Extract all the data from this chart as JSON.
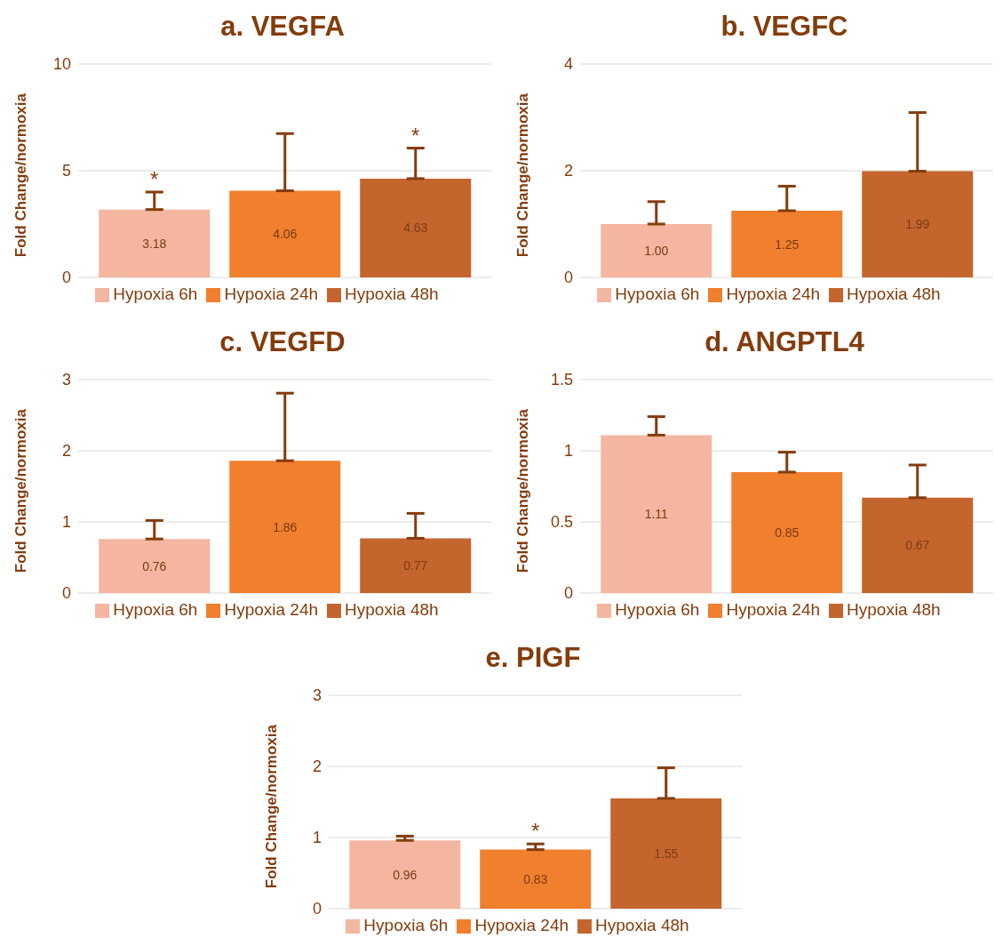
{
  "chart_data": [
    {
      "type": "bar",
      "title": "a. VEGFA",
      "ylabel": "Fold Change/normoxia",
      "categories": [
        null
      ],
      "ylim": [
        0,
        10
      ],
      "yticks": [
        0,
        5,
        10
      ],
      "grid": "y",
      "legend": "bottom",
      "data_labels": true,
      "series": [
        {
          "name": "Hypoxia 6h",
          "color": "#f4b6a0",
          "values": [
            3.18
          ],
          "errors": [
            [
              3.18,
              4.0
            ]
          ]
        },
        {
          "name": "Hypoxia 24h",
          "color": "#f07f2e",
          "values": [
            4.06
          ],
          "errors": [
            [
              4.06,
              6.74
            ]
          ]
        },
        {
          "name": "Hypoxia 48h",
          "color": "#c4652d",
          "values": [
            4.63
          ],
          "errors": [
            [
              4.63,
              6.06
            ]
          ]
        }
      ],
      "annotations": [
        {
          "text": "*",
          "y": 4.0
        },
        {
          "text": "*",
          "y": 6.06
        }
      ]
    },
    {
      "type": "bar",
      "title": "b. VEGFC",
      "ylabel": "Fold Change/normoxia",
      "categories": [
        null
      ],
      "ylim": [
        0,
        4
      ],
      "yticks": [
        0,
        2,
        4
      ],
      "grid": "y",
      "legend": "bottom",
      "data_labels": true,
      "series": [
        {
          "name": "Hypoxia 6h",
          "color": "#f4b6a0",
          "values": [
            1.0
          ],
          "value_labels": [
            "1.00"
          ],
          "errors": [
            [
              1.0,
              1.42
            ]
          ]
        },
        {
          "name": "Hypoxia 24h",
          "color": "#f07f2e",
          "values": [
            1.25
          ],
          "errors": [
            [
              1.25,
              1.71
            ]
          ]
        },
        {
          "name": "Hypoxia 48h",
          "color": "#c4652d",
          "values": [
            1.99
          ],
          "errors": [
            [
              1.99,
              3.09
            ]
          ]
        }
      ]
    },
    {
      "type": "bar",
      "title": "c. VEGFD",
      "ylabel": "Fold Change/normoxia",
      "categories": [
        null
      ],
      "ylim": [
        0,
        3
      ],
      "yticks": [
        0,
        1,
        2,
        3
      ],
      "grid": "y",
      "legend": "bottom",
      "data_labels": true,
      "series": [
        {
          "name": "Hypoxia 6h",
          "color": "#f4b6a0",
          "values": [
            0.76
          ],
          "errors": [
            [
              0.76,
              1.02
            ]
          ]
        },
        {
          "name": "Hypoxia 24h",
          "color": "#f07f2e",
          "values": [
            1.86
          ],
          "errors": [
            [
              1.86,
              2.81
            ]
          ]
        },
        {
          "name": "Hypoxia 48h",
          "color": "#c4652d",
          "values": [
            0.77
          ],
          "errors": [
            [
              0.77,
              1.12
            ]
          ]
        }
      ]
    },
    {
      "type": "bar",
      "title": "d. ANGPTL4",
      "ylabel": "Fold Change/normoxia",
      "categories": [
        null
      ],
      "ylim": [
        0,
        1.5
      ],
      "yticks": [
        0,
        0.5,
        1,
        1.5
      ],
      "grid": "y",
      "legend": "bottom",
      "data_labels": true,
      "series": [
        {
          "name": "Hypoxia 6h",
          "color": "#f4b6a0",
          "values": [
            1.11
          ],
          "errors": [
            [
              1.11,
              1.24
            ]
          ]
        },
        {
          "name": "Hypoxia 24h",
          "color": "#f07f2e",
          "values": [
            0.85
          ],
          "errors": [
            [
              0.85,
              0.99
            ]
          ]
        },
        {
          "name": "Hypoxia 48h",
          "color": "#c4652d",
          "values": [
            0.67
          ],
          "errors": [
            [
              0.67,
              0.9
            ]
          ]
        }
      ]
    },
    {
      "type": "bar",
      "title": "e. PIGF",
      "ylabel": "Fold Change/normoxia",
      "categories": [
        null
      ],
      "ylim": [
        0,
        3
      ],
      "yticks": [
        0,
        1,
        2,
        3
      ],
      "grid": "y",
      "legend": "bottom",
      "data_labels": true,
      "series": [
        {
          "name": "Hypoxia 6h",
          "color": "#f4b6a0",
          "values": [
            0.96
          ],
          "errors": [
            [
              0.96,
              1.02
            ]
          ]
        },
        {
          "name": "Hypoxia 24h",
          "color": "#f07f2e",
          "values": [
            0.83
          ],
          "errors": [
            [
              0.83,
              0.91
            ]
          ]
        },
        {
          "name": "Hypoxia 48h",
          "color": "#c4652d",
          "values": [
            1.55
          ],
          "errors": [
            [
              1.55,
              1.98
            ]
          ]
        }
      ],
      "annotations": [
        {
          "text": "*",
          "y": 0.91
        }
      ]
    }
  ]
}
